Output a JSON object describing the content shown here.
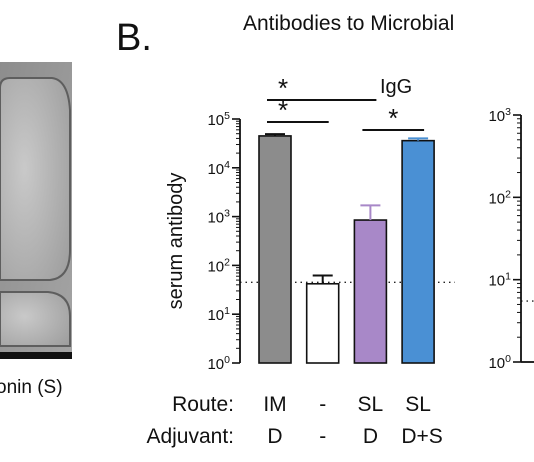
{
  "panel_label": "B.",
  "header_title": "Antibodies to Microbial",
  "left_caption": "onin (S)",
  "chart_data": [
    {
      "type": "bar",
      "title": "IgG",
      "ylabel": "serum antibody",
      "yscale": "log",
      "ylim": [
        1,
        100000
      ],
      "ytick_labels": [
        "10^0",
        "10^1",
        "10^2",
        "10^3",
        "10^4",
        "10^5"
      ],
      "dotted_threshold": 45,
      "categories": [
        "IM D",
        "- -",
        "SL D",
        "SL D+S"
      ],
      "row_labels": {
        "route_label": "Route:",
        "adjuvant_label": "Adjuvant:",
        "route": [
          "IM",
          "-",
          "SL",
          "SL"
        ],
        "adjuvant": [
          "D",
          "-",
          "D",
          "D+S"
        ]
      },
      "values": [
        45000,
        42,
        850,
        36000
      ],
      "error_upper": [
        49000,
        62,
        1700,
        40000
      ],
      "colors": [
        "#8c8c8c",
        "#ffffff",
        "#a888c8",
        "#4a90d4"
      ],
      "significance": [
        {
          "from": 0,
          "to": 2,
          "label": "*"
        },
        {
          "from": 0,
          "to": 1,
          "label": "*"
        },
        {
          "from": 2,
          "to": 3,
          "label": "*"
        }
      ]
    },
    {
      "type": "bar",
      "yscale": "log",
      "ylim": [
        1,
        1000
      ],
      "ytick_labels": [
        "10^0",
        "10^1",
        "10^2",
        "10^3"
      ],
      "dotted_threshold": 5.5,
      "values": []
    }
  ]
}
